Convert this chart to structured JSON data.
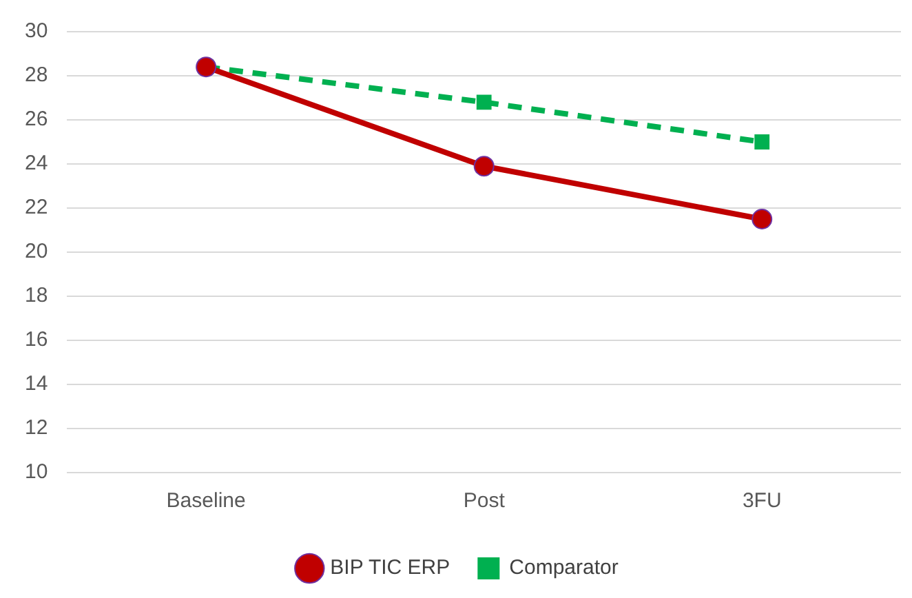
{
  "chart_data": {
    "type": "line",
    "categories": [
      "Baseline",
      "Post",
      "3FU"
    ],
    "series": [
      {
        "name": "BIP TIC ERP",
        "color": "#c00000",
        "values": [
          28.4,
          23.9,
          21.5
        ],
        "marker": "circle",
        "line_style": "solid"
      },
      {
        "name": "Comparator",
        "color": "#00b050",
        "values": [
          28.4,
          26.8,
          25.0
        ],
        "marker": "square",
        "line_style": "dashed"
      }
    ],
    "ylim": [
      10,
      30
    ],
    "yticks": [
      10,
      12,
      14,
      16,
      18,
      20,
      22,
      24,
      26,
      28,
      30
    ],
    "grid": "y",
    "legend": "bottom"
  }
}
